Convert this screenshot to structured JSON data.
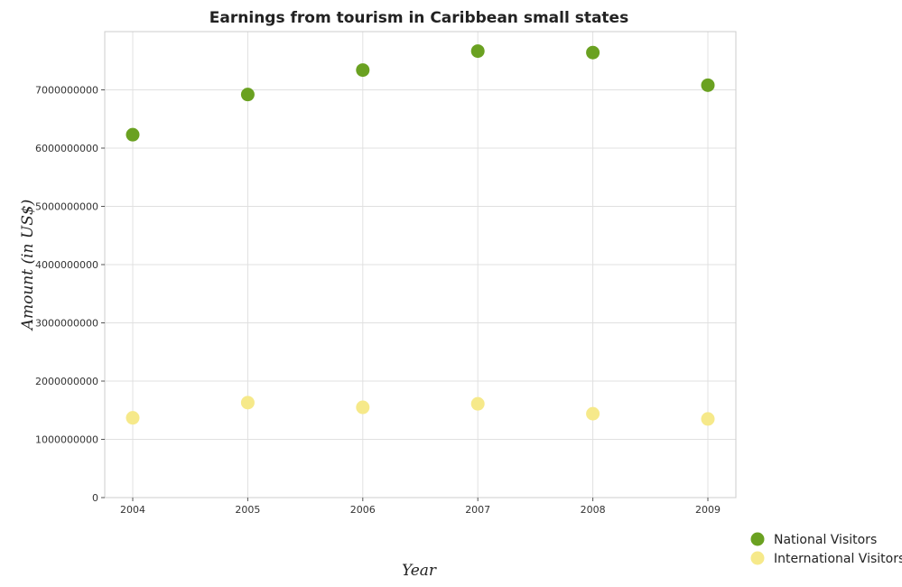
{
  "chart_data": {
    "type": "scatter",
    "title": "Earnings from tourism in Caribbean small states",
    "xlabel": "Year",
    "ylabel": "Amount (in US$)",
    "categories": [
      "2004",
      "2005",
      "2006",
      "2007",
      "2008",
      "2009"
    ],
    "ylim": [
      0,
      8000000000
    ],
    "yticks": [
      0,
      1000000000,
      2000000000,
      3000000000,
      4000000000,
      5000000000,
      6000000000,
      7000000000
    ],
    "ytick_labels": [
      "0",
      "1000000000",
      "2000000000",
      "3000000000",
      "4000000000",
      "5000000000",
      "6000000000",
      "7000000000"
    ],
    "grid": true,
    "legend_position": "bottom-right",
    "series": [
      {
        "name": "National Visitors",
        "color": "#6aa121",
        "values": [
          6230000000,
          6920000000,
          7340000000,
          7665000000,
          7640000000,
          7080000000
        ]
      },
      {
        "name": "International Visitors",
        "color": "#f6e98a",
        "values": [
          1370000000,
          1630000000,
          1550000000,
          1610000000,
          1440000000,
          1350000000
        ]
      }
    ]
  }
}
